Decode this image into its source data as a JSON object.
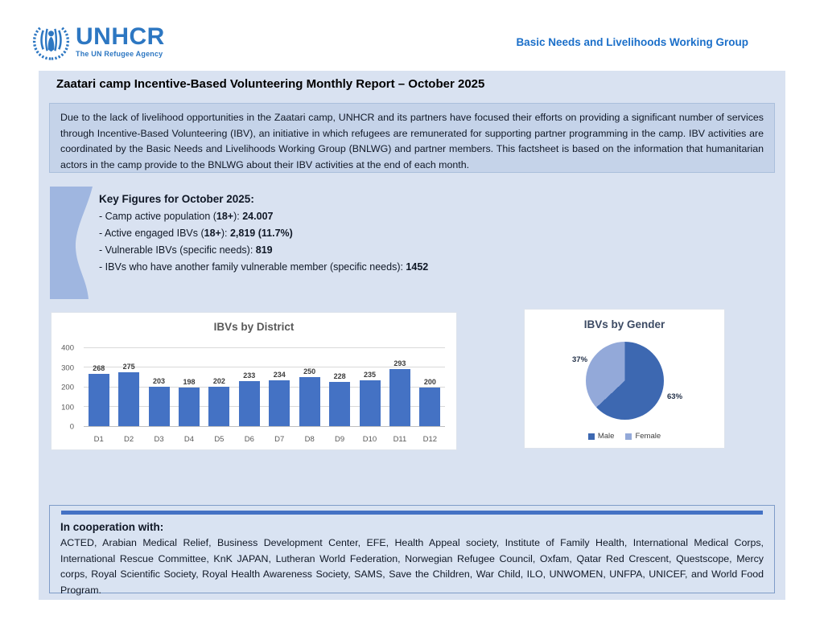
{
  "header": {
    "logo_name": "UNHCR",
    "logo_tagline": "The UN Refugee Agency",
    "working_group": "Basic Needs and Livelihoods Working Group"
  },
  "report": {
    "title": "Zaatari camp Incentive-Based Volunteering Monthly Report – October 2025",
    "intro": "Due to the lack of livelihood opportunities in the Zaatari camp, UNHCR and its partners have focused their efforts on providing a significant number of services through Incentive-Based Volunteering (IBV), an initiative in which refugees are remunerated for supporting partner programming in the camp. IBV activities are coordinated by the Basic Needs and Livelihoods Working Group (BNLWG) and partner members. This factsheet is based on the information that humanitarian actors in the camp provide to the BNLWG about their IBV activities at the end of each month."
  },
  "key_figures": {
    "heading": "Key Figures for October 2025:",
    "lines": [
      [
        {
          "t": "- Camp active population ("
        },
        {
          "t": "18+",
          "b": true
        },
        {
          "t": "): "
        },
        {
          "t": "24.007",
          "b": true
        }
      ],
      [
        {
          "t": "- Active engaged IBVs ("
        },
        {
          "t": "18+",
          "b": true
        },
        {
          "t": "): "
        },
        {
          "t": "2,819 (11.7%)",
          "b": true
        }
      ],
      [
        {
          "t": "- Vulnerable IBVs (specific needs): "
        },
        {
          "t": "819",
          "b": true
        }
      ],
      [
        {
          "t": "- IBVs who have another family vulnerable member (specific needs): "
        },
        {
          "t": "1452",
          "b": true
        }
      ]
    ]
  },
  "chart_data": [
    {
      "type": "bar",
      "title": "IBVs by District",
      "categories": [
        "D1",
        "D2",
        "D3",
        "D4",
        "D5",
        "D6",
        "D7",
        "D8",
        "D9",
        "D10",
        "D11",
        "D12"
      ],
      "values": [
        268,
        275,
        203,
        198,
        202,
        233,
        234,
        250,
        228,
        235,
        293,
        200
      ],
      "xlabel": "",
      "ylabel": "",
      "ylim": [
        0,
        400
      ],
      "yticks": [
        0,
        100,
        200,
        300,
        400
      ],
      "grid": true,
      "bar_color": "#4472c4",
      "data_labels": true
    },
    {
      "type": "pie",
      "title": "IBVs by Gender",
      "labels": [
        "Male",
        "Female"
      ],
      "values": [
        63,
        37
      ],
      "value_labels": [
        "63%",
        "37%"
      ],
      "colors": [
        "#3d68b1",
        "#93a9d9"
      ],
      "legend_position": "bottom"
    }
  ],
  "cooperation": {
    "heading": "In cooperation with:",
    "body": "ACTED, Arabian Medical Relief, Business Development Center, EFE, Health Appeal society, Institute of Family Health, International Medical Corps, International Rescue Committee, KnK JAPAN, Lutheran World Federation, Norwegian Refugee Council, Oxfam, Qatar Red Crescent, Questscope, Mercy corps, Royal Scientific Society, Royal Health Awareness Society, SAMS, Save the Children, War Child, ILO, UNWOMEN, UNFPA, UNICEF, and World Food Program."
  },
  "colors": {
    "brand_blue": "#2d77c2",
    "header_text_blue": "#1b6fc9",
    "container_bg": "#d9e2f1",
    "intro_box_bg": "#c5d3e9",
    "shape_blue": "#9fb6e0",
    "bar_blue": "#4472c4",
    "pie_male": "#3d68b1",
    "pie_female": "#93a9d9",
    "coop_stripe": "#4472c4"
  }
}
